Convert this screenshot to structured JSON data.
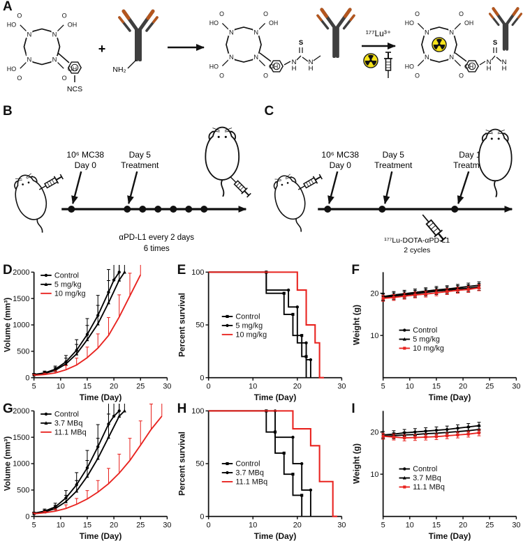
{
  "panels": {
    "a": "A",
    "b": "B",
    "c": "C",
    "d": "D",
    "e": "E",
    "f": "F",
    "g": "G",
    "h": "H",
    "i": "I"
  },
  "colors": {
    "black": "#000000",
    "red": "#e8231f",
    "antibody_dark": "#3f3f3f",
    "antibody_tip": "#b4561e",
    "rad_yellow": "#f5e21a"
  },
  "panel_a": {
    "atoms": {
      "n": "N",
      "o": "O",
      "ho": "HO",
      "oh": "OH",
      "s": "S",
      "h": "H"
    },
    "ncs": "NCS",
    "plus": "+",
    "nh2": "NH₂",
    "lu": "¹⁷⁷Lu³⁺"
  },
  "panel_b": {
    "injection_line1": "10⁶ MC38",
    "injection_line2": "Day 0",
    "treat1_line1": "Day 5",
    "treat1_line2": "Treatment",
    "caption1": "αPD-L1 every 2 days",
    "caption2": "6 times"
  },
  "panel_c": {
    "injection_line1": "10⁶ MC38",
    "injection_line2": "Day 0",
    "treat1_line1": "Day 5",
    "treat1_line2": "Treatment",
    "treat2_line1": "Day 12",
    "treat2_line2": "Treatment",
    "caption1": "¹⁷⁷Lu-DOTA-αPD-L1",
    "caption2": "2 cycles"
  },
  "chart_data": [
    {
      "id": "D",
      "type": "line",
      "xlabel": "Time (Day)",
      "ylabel": "Volume (mm³)",
      "xlim": [
        5,
        30
      ],
      "ylim": [
        0,
        2000
      ],
      "xticks": [
        5,
        10,
        15,
        20,
        25,
        30
      ],
      "yticks": [
        0,
        500,
        1000,
        1500,
        2000
      ],
      "err_both": false,
      "legend": {
        "x": 0.05,
        "y": 0.03
      },
      "series": [
        {
          "name": "Control",
          "color": "#000000",
          "marker": "circle",
          "x": [
            5,
            7,
            9,
            11,
            13,
            15,
            17,
            19,
            20,
            21
          ],
          "y": [
            60,
            90,
            160,
            300,
            520,
            820,
            1180,
            1620,
            1850,
            2000
          ],
          "yerr": [
            20,
            35,
            60,
            120,
            200,
            300,
            380,
            430,
            380,
            250
          ]
        },
        {
          "name": "5 mg/kg",
          "color": "#000000",
          "marker": "triangle",
          "x": [
            5,
            7,
            9,
            11,
            13,
            15,
            17,
            19,
            21,
            22
          ],
          "y": [
            55,
            80,
            140,
            260,
            450,
            720,
            1020,
            1420,
            1850,
            2000
          ],
          "yerr": [
            20,
            30,
            55,
            110,
            180,
            270,
            350,
            420,
            400,
            250
          ]
        },
        {
          "name": "10 mg/kg",
          "color": "#e8231f",
          "marker": "none",
          "x": [
            5,
            7,
            9,
            11,
            13,
            15,
            17,
            19,
            21,
            23,
            25
          ],
          "y": [
            45,
            60,
            90,
            150,
            240,
            380,
            560,
            800,
            1150,
            1550,
            1950
          ],
          "yerr": [
            15,
            25,
            40,
            80,
            130,
            200,
            270,
            340,
            420,
            430,
            250
          ]
        }
      ]
    },
    {
      "id": "E",
      "type": "step",
      "xlabel": "Time (Day)",
      "ylabel": "Percent survival",
      "xlim": [
        0,
        30
      ],
      "ylim": [
        0,
        100
      ],
      "xticks": [
        0,
        10,
        20,
        30
      ],
      "yticks": [
        0,
        50,
        100
      ],
      "legend": {
        "x": 0.1,
        "y": 0.42
      },
      "series": [
        {
          "name": "Control",
          "color": "#000000",
          "marker": "square",
          "points": [
            [
              0,
              100
            ],
            [
              13,
              100
            ],
            [
              13,
              80
            ],
            [
              17,
              80
            ],
            [
              17,
              60
            ],
            [
              19,
              60
            ],
            [
              19,
              40
            ],
            [
              21,
              40
            ],
            [
              21,
              20
            ],
            [
              22,
              20
            ],
            [
              22,
              0
            ]
          ]
        },
        {
          "name": "5 mg/kg",
          "color": "#000000",
          "marker": "circle",
          "points": [
            [
              0,
              100
            ],
            [
              13,
              100
            ],
            [
              13,
              83
            ],
            [
              18,
              83
            ],
            [
              18,
              67
            ],
            [
              20,
              67
            ],
            [
              20,
              33
            ],
            [
              22,
              33
            ],
            [
              22,
              17
            ],
            [
              23,
              17
            ],
            [
              23,
              0
            ]
          ]
        },
        {
          "name": "10 mg/kg",
          "color": "#e8231f",
          "marker": "none",
          "width": 2,
          "points": [
            [
              0,
              100
            ],
            [
              20,
              100
            ],
            [
              20,
              83
            ],
            [
              22,
              83
            ],
            [
              22,
              50
            ],
            [
              24,
              50
            ],
            [
              24,
              33
            ],
            [
              25,
              33
            ],
            [
              25,
              0
            ],
            [
              26,
              0
            ]
          ]
        }
      ]
    },
    {
      "id": "F",
      "type": "line",
      "xlabel": "Time (Day)",
      "ylabel": "Weight (g)",
      "xlim": [
        5,
        30
      ],
      "ylim": [
        0,
        25
      ],
      "xticks": [
        5,
        10,
        15,
        20,
        25,
        30
      ],
      "yticks": [
        10,
        20
      ],
      "err_both": true,
      "legend": {
        "x": 0.12,
        "y": 0.55
      },
      "series": [
        {
          "name": "Control",
          "color": "#000000",
          "marker": "circle",
          "x": [
            5,
            7,
            9,
            11,
            13,
            15,
            17,
            19,
            21,
            23
          ],
          "y": [
            19.2,
            19.6,
            19.9,
            20.2,
            20.5,
            20.8,
            21.0,
            21.3,
            21.6,
            21.9
          ],
          "yerr": 0.8
        },
        {
          "name": "5 mg/kg",
          "color": "#000000",
          "marker": "triangle",
          "x": [
            5,
            7,
            9,
            11,
            13,
            15,
            17,
            19,
            21,
            23
          ],
          "y": [
            19.0,
            19.3,
            19.6,
            19.9,
            20.2,
            20.5,
            20.7,
            21.0,
            21.2,
            21.5
          ],
          "yerr": 0.8
        },
        {
          "name": "10 mg/kg",
          "color": "#e8231f",
          "marker": "square",
          "x": [
            5,
            7,
            9,
            11,
            13,
            15,
            17,
            19,
            21,
            23
          ],
          "y": [
            18.8,
            19.0,
            19.3,
            19.6,
            19.8,
            20.1,
            20.4,
            20.7,
            20.9,
            21.3
          ],
          "yerr": 0.7
        }
      ]
    },
    {
      "id": "G",
      "type": "line",
      "xlabel": "Time (Day)",
      "ylabel": "Volume (mm³)",
      "xlim": [
        5,
        30
      ],
      "ylim": [
        0,
        2000
      ],
      "xticks": [
        5,
        10,
        15,
        20,
        25,
        30
      ],
      "yticks": [
        0,
        500,
        1000,
        1500,
        2000
      ],
      "err_both": false,
      "legend": {
        "x": 0.05,
        "y": 0.03
      },
      "series": [
        {
          "name": "Control",
          "color": "#000000",
          "marker": "circle",
          "x": [
            5,
            7,
            9,
            11,
            13,
            15,
            17,
            19,
            20,
            21
          ],
          "y": [
            60,
            100,
            180,
            350,
            600,
            920,
            1320,
            1750,
            1900,
            2000
          ],
          "yerr": [
            20,
            40,
            70,
            140,
            230,
            330,
            420,
            450,
            400,
            250
          ]
        },
        {
          "name": "3.7 MBq",
          "color": "#000000",
          "marker": "triangle",
          "x": [
            5,
            7,
            9,
            11,
            13,
            15,
            17,
            19,
            21,
            22
          ],
          "y": [
            55,
            85,
            150,
            280,
            480,
            760,
            1100,
            1500,
            1900,
            2000
          ],
          "yerr": [
            20,
            35,
            60,
            120,
            200,
            300,
            380,
            440,
            420,
            250
          ]
        },
        {
          "name": "11.1 MBq",
          "color": "#e8231f",
          "marker": "none",
          "x": [
            5,
            7,
            9,
            11,
            13,
            15,
            17,
            19,
            21,
            23,
            25,
            27,
            29
          ],
          "y": [
            50,
            70,
            100,
            150,
            230,
            330,
            460,
            620,
            820,
            1060,
            1350,
            1650,
            1900
          ],
          "yerr": [
            15,
            25,
            40,
            70,
            110,
            160,
            220,
            290,
            360,
            420,
            460,
            480,
            400
          ]
        }
      ]
    },
    {
      "id": "H",
      "type": "step",
      "xlabel": "Time (Day)",
      "ylabel": "Percent survival",
      "xlim": [
        0,
        30
      ],
      "ylim": [
        0,
        100
      ],
      "xticks": [
        0,
        10,
        20,
        30
      ],
      "yticks": [
        0,
        50,
        100
      ],
      "legend": {
        "x": 0.1,
        "y": 0.5
      },
      "series": [
        {
          "name": "Control",
          "color": "#000000",
          "marker": "square",
          "points": [
            [
              0,
              100
            ],
            [
              13,
              100
            ],
            [
              13,
              80
            ],
            [
              15,
              80
            ],
            [
              15,
              60
            ],
            [
              17,
              60
            ],
            [
              17,
              40
            ],
            [
              19,
              40
            ],
            [
              19,
              20
            ],
            [
              21,
              20
            ],
            [
              21,
              0
            ]
          ]
        },
        {
          "name": "3.7 MBq",
          "color": "#000000",
          "marker": "circle",
          "points": [
            [
              0,
              100
            ],
            [
              15,
              100
            ],
            [
              15,
              75
            ],
            [
              19,
              75
            ],
            [
              19,
              50
            ],
            [
              21,
              50
            ],
            [
              21,
              25
            ],
            [
              23,
              25
            ],
            [
              23,
              0
            ]
          ]
        },
        {
          "name": "11.1 MBq",
          "color": "#e8231f",
          "marker": "none",
          "width": 2,
          "points": [
            [
              0,
              100
            ],
            [
              19,
              100
            ],
            [
              19,
              83
            ],
            [
              23,
              83
            ],
            [
              23,
              67
            ],
            [
              25,
              67
            ],
            [
              25,
              33
            ],
            [
              28,
              33
            ],
            [
              28,
              0
            ],
            [
              29,
              0
            ]
          ]
        }
      ]
    },
    {
      "id": "I",
      "type": "line",
      "xlabel": "Time (Day)",
      "ylabel": "Weight (g)",
      "xlim": [
        5,
        30
      ],
      "ylim": [
        0,
        25
      ],
      "xticks": [
        5,
        10,
        15,
        20,
        25,
        30
      ],
      "yticks": [
        10,
        20
      ],
      "err_both": true,
      "legend": {
        "x": 0.12,
        "y": 0.55
      },
      "series": [
        {
          "name": "Control",
          "color": "#000000",
          "marker": "circle",
          "x": [
            5,
            7,
            9,
            11,
            13,
            15,
            17,
            19,
            21,
            23
          ],
          "y": [
            19.3,
            19.5,
            19.8,
            20.0,
            20.2,
            20.4,
            20.6,
            20.9,
            21.2,
            21.5
          ],
          "yerr": 0.8
        },
        {
          "name": "3.7 MBq",
          "color": "#000000",
          "marker": "triangle",
          "x": [
            5,
            7,
            9,
            11,
            13,
            15,
            17,
            19,
            21,
            23
          ],
          "y": [
            19.0,
            19.1,
            19.3,
            19.4,
            19.6,
            19.7,
            19.9,
            20.1,
            20.3,
            20.6
          ],
          "yerr": 0.7
        },
        {
          "name": "11.1 MBq",
          "color": "#e8231f",
          "marker": "square",
          "x": [
            5,
            7,
            9,
            11,
            13,
            15,
            17,
            19,
            21,
            23
          ],
          "y": [
            19.0,
            18.8,
            18.6,
            18.7,
            18.8,
            18.9,
            19.1,
            19.3,
            19.5,
            19.8
          ],
          "yerr": 0.7
        }
      ]
    }
  ]
}
